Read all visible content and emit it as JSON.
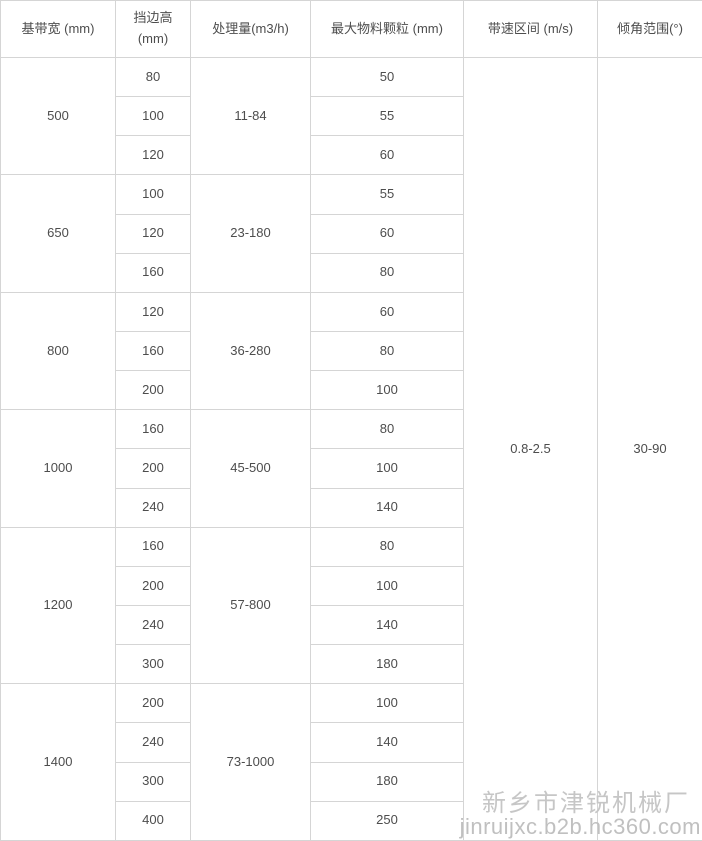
{
  "table": {
    "headers": [
      "基带宽 (mm)",
      "挡边高 (mm)",
      "处理量(m3/h)",
      "最大物料颗粒 (mm)",
      "带速区间 (m/s)",
      "倾角范围(°)"
    ],
    "belt_speed": "0.8-2.5",
    "incline_range": "30-90",
    "groups": [
      {
        "width": "500",
        "capacity": "11-84",
        "rows": [
          {
            "height": "80",
            "particle": "50"
          },
          {
            "height": "100",
            "particle": "55"
          },
          {
            "height": "120",
            "particle": "60"
          }
        ]
      },
      {
        "width": "650",
        "capacity": "23-180",
        "rows": [
          {
            "height": "100",
            "particle": "55"
          },
          {
            "height": "120",
            "particle": "60"
          },
          {
            "height": "160",
            "particle": "80"
          }
        ]
      },
      {
        "width": "800",
        "capacity": "36-280",
        "rows": [
          {
            "height": "120",
            "particle": "60"
          },
          {
            "height": "160",
            "particle": "80"
          },
          {
            "height": "200",
            "particle": "100"
          }
        ]
      },
      {
        "width": "1000",
        "capacity": "45-500",
        "rows": [
          {
            "height": "160",
            "particle": "80"
          },
          {
            "height": "200",
            "particle": "100"
          },
          {
            "height": "240",
            "particle": "140"
          }
        ]
      },
      {
        "width": "1200",
        "capacity": "57-800",
        "rows": [
          {
            "height": "160",
            "particle": "80"
          },
          {
            "height": "200",
            "particle": "100"
          },
          {
            "height": "240",
            "particle": "140"
          },
          {
            "height": "300",
            "particle": "180"
          }
        ]
      },
      {
        "width": "1400",
        "capacity": "73-1000",
        "rows": [
          {
            "height": "200",
            "particle": "100"
          },
          {
            "height": "240",
            "particle": "140"
          },
          {
            "height": "300",
            "particle": "180"
          },
          {
            "height": "400",
            "particle": "250"
          }
        ]
      }
    ]
  },
  "watermark": {
    "company": "新乡市津锐机械厂",
    "url": "jinruijxc.b2b.hc360.com"
  },
  "colors": {
    "border": "#d5d5d5",
    "text": "#4d4d4d",
    "watermark": "#c6c6c6"
  }
}
